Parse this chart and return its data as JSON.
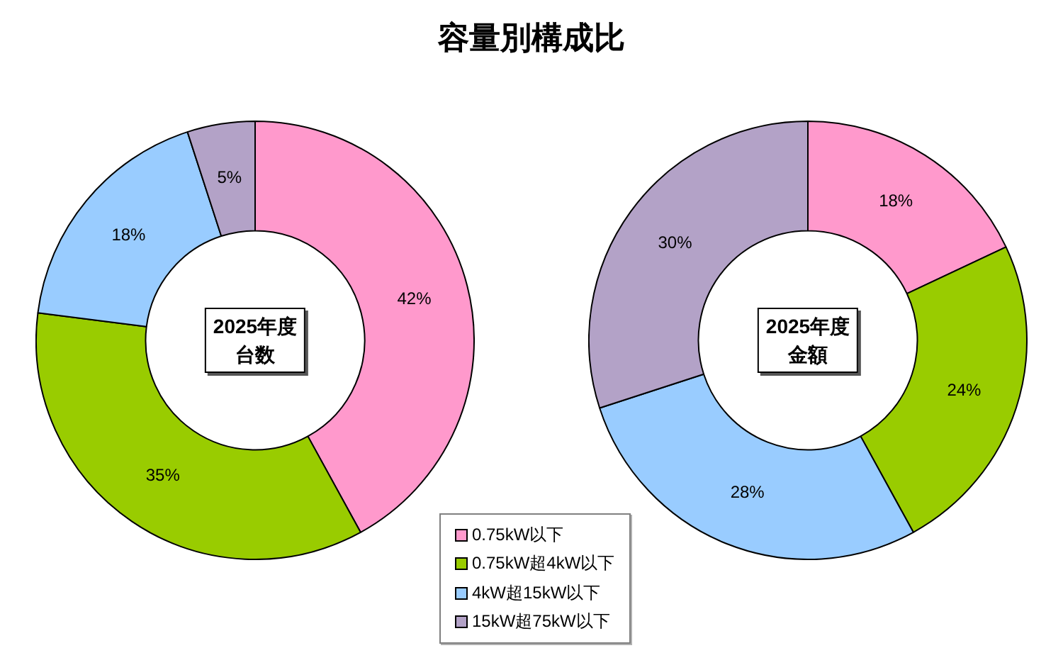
{
  "chart_data": [
    {
      "type": "donut",
      "title": "容量別構成比",
      "annotations": [
        "2025年度",
        "台数"
      ],
      "categories": [
        "0.75kW以下",
        "0.75kW超4kW以下",
        "4kW超15kW以下",
        "15kW超75kW以下"
      ],
      "values": [
        42,
        35,
        18,
        5
      ],
      "value_labels": [
        "42%",
        "35%",
        "18%",
        "5%"
      ],
      "colors": [
        "#ff99cc",
        "#99cc00",
        "#99ccff",
        "#b3a2c7"
      ],
      "legend": "bottom right"
    },
    {
      "type": "donut",
      "annotations": [
        "2025年度",
        "金額"
      ],
      "categories": [
        null,
        null,
        null,
        null
      ],
      "values": [
        18,
        24,
        28,
        30
      ],
      "value_labels": [
        "18%",
        "24%",
        "28%",
        "30%"
      ],
      "colors": [
        "#ff99cc",
        "#99cc00",
        "#99ccff",
        "#b3a2c7"
      ]
    }
  ]
}
